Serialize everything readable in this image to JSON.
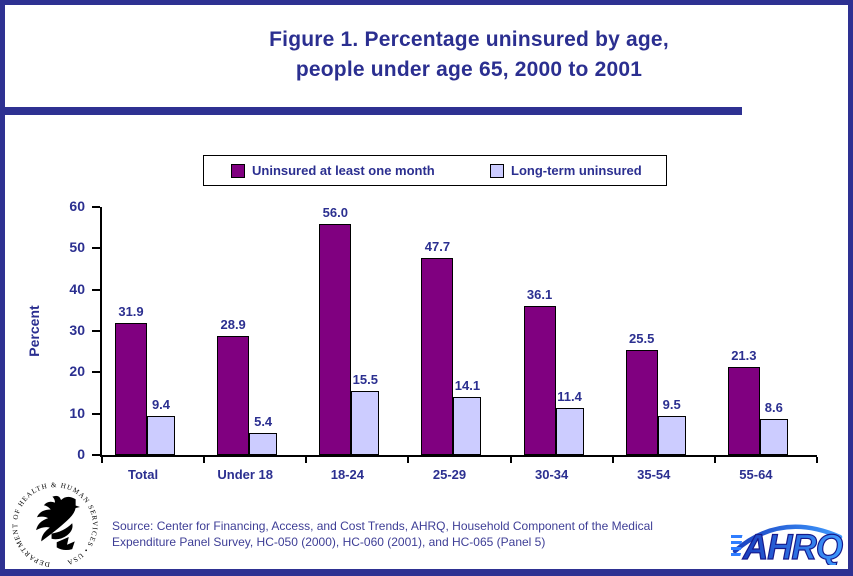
{
  "title": {
    "line1": "Figure 1. Percentage uninsured by age,",
    "line2": "people under age 65, 2000 to 2001"
  },
  "chart_data": {
    "type": "bar",
    "title": "Figure 1. Percentage uninsured by age, people under age 65, 2000 to 2001",
    "categories": [
      "Total",
      "Under 18",
      "18-24",
      "25-29",
      "30-34",
      "35-54",
      "55-64"
    ],
    "series": [
      {
        "name": "Uninsured at least one month",
        "color": "#800080",
        "values": [
          31.9,
          28.9,
          56.0,
          47.7,
          36.1,
          25.5,
          21.3
        ]
      },
      {
        "name": "Long-term uninsured",
        "color": "#ccccff",
        "values": [
          9.4,
          5.4,
          15.5,
          14.1,
          11.4,
          9.5,
          8.6
        ]
      }
    ],
    "xlabel": "",
    "ylabel": "Percent",
    "ylim": [
      0,
      60
    ],
    "yticks": [
      0,
      10,
      20,
      30,
      40,
      50,
      60
    ],
    "grid": false,
    "legend_position": "top",
    "value_label_decimals": 1
  },
  "source": {
    "line1": "Source: Center for Financing, Access, and Cost Trends, AHRQ, Household Component of the Medical",
    "line2": "Expenditure Panel Survey, HC-050 (2000), HC-060 (2001), and HC-065 (Panel 5)"
  },
  "logos": {
    "hhs_circle_text": "DEPARTMENT OF HEALTH & HUMAN SERVICES • USA",
    "ahrq_text": "AHRQ"
  },
  "colors": {
    "frame_navy": "#2e3192",
    "text_navy": "#2b2f90",
    "source_text": "#3e3e96",
    "bar_outline": "#000000"
  }
}
